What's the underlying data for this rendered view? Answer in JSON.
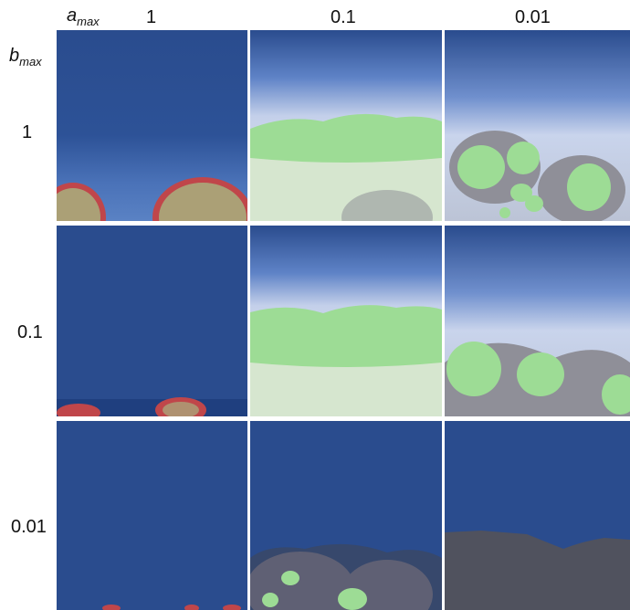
{
  "axis_labels": {
    "a_base": "a",
    "a_sub": "max",
    "b_base": "b",
    "b_sub": "max"
  },
  "columns": [
    "1",
    "0.1",
    "0.01"
  ],
  "rows": [
    "1",
    "0.1",
    "0.01"
  ],
  "colors": {
    "background_dark": "#2a4c8e",
    "background_light": "#c9d4ec",
    "colony_green": "#9ddc95",
    "colony_gray": "#8f8f98",
    "cell_red": "#d42a2a"
  }
}
